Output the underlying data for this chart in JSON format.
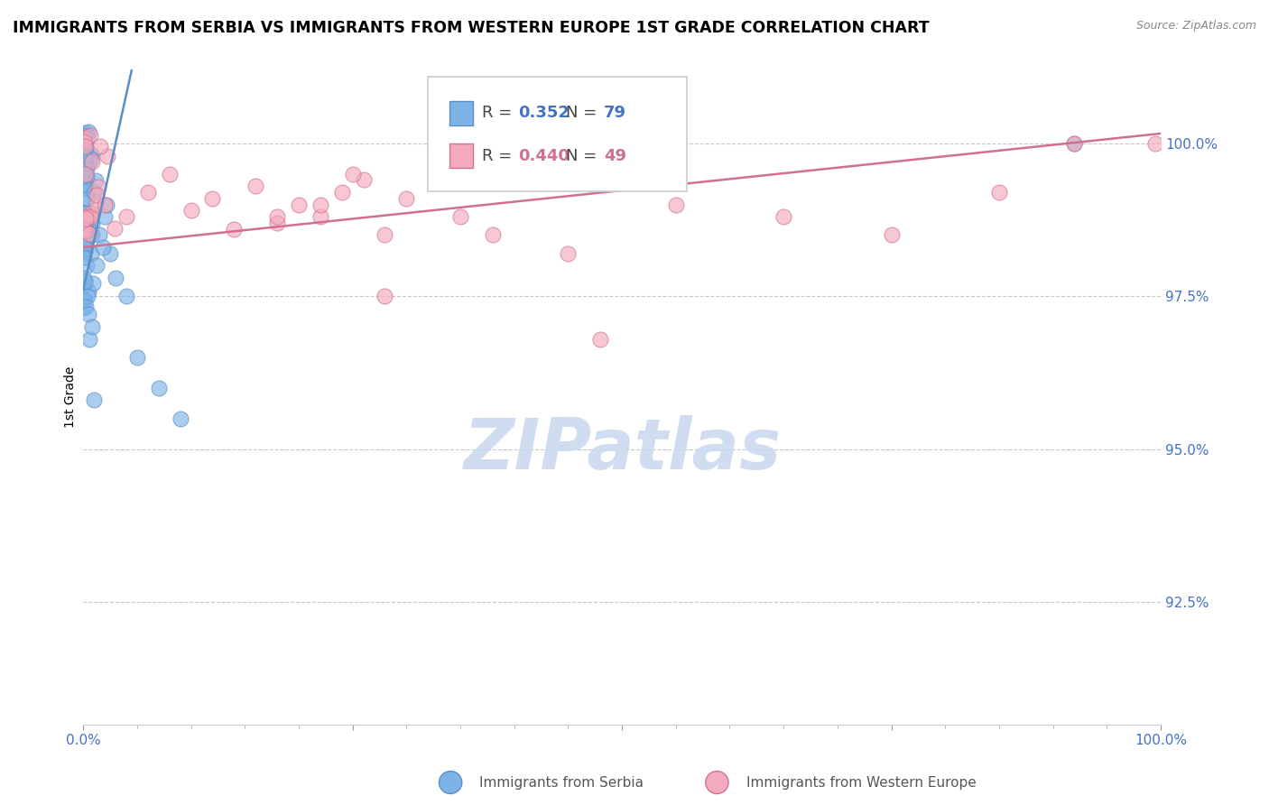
{
  "title": "IMMIGRANTS FROM SERBIA VS IMMIGRANTS FROM WESTERN EUROPE 1ST GRADE CORRELATION CHART",
  "source": "Source: ZipAtlas.com",
  "ylabel": "1st Grade",
  "xlim": [
    0.0,
    100.0
  ],
  "ylim": [
    90.5,
    101.2
  ],
  "yticks": [
    92.5,
    95.0,
    97.5,
    100.0
  ],
  "ytick_labels": [
    "92.5%",
    "95.0%",
    "97.5%",
    "100.0%"
  ],
  "serbia_color": "#7EB3E8",
  "serbia_edge": "#5B8EC4",
  "we_color": "#F4AABC",
  "we_edge": "#D07090",
  "serbia_R": "0.352",
  "serbia_N": "79",
  "we_R": "0.440",
  "we_N": "49",
  "r_value_color": "#4472C4",
  "n_value_color": "#4472C4",
  "we_r_value_color": "#D07090",
  "we_n_value_color": "#D07090",
  "legend_bg": "#FFFFFF",
  "legend_border": "#CCCCCC",
  "watermark": "ZIPatlas",
  "watermark_color": "#C8D8EE",
  "grid_color": "#BBBBBB",
  "tick_color": "#4472C4",
  "title_fontsize": 12.5,
  "source_text": "Source: ZipAtlas.com",
  "serbia_label": "Immigrants from Serbia",
  "we_label": "Immigrants from Western Europe"
}
